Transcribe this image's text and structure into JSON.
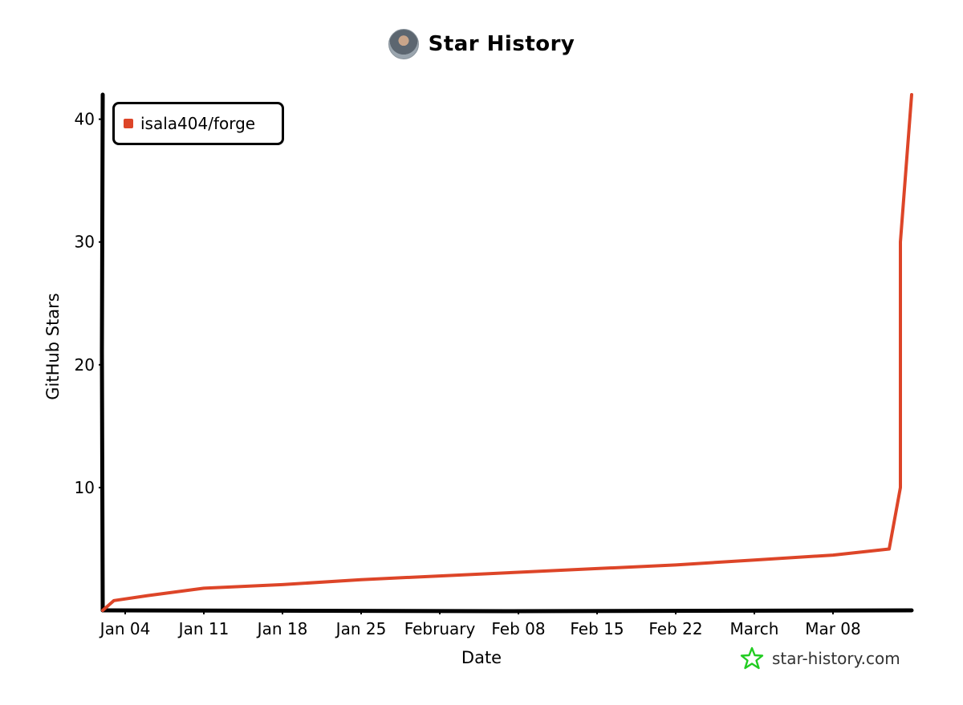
{
  "header": {
    "title": "Star History"
  },
  "chart_data": {
    "type": "line",
    "title": "Star History",
    "xlabel": "Date",
    "ylabel": "GitHub Stars",
    "x_tick_labels": [
      "Jan 04",
      "Jan 11",
      "Jan 18",
      "Jan 25",
      "February",
      "Feb 08",
      "Feb 15",
      "Feb 22",
      "March",
      "Mar 08"
    ],
    "y_ticks": [
      10,
      20,
      30,
      40
    ],
    "ylim": [
      0,
      42
    ],
    "xlim": [
      "2026-01-02",
      "2026-03-15"
    ],
    "legend_position": "top-left",
    "grid": false,
    "series": [
      {
        "name": "isala404/forge",
        "color": "#dd4528",
        "x": [
          "2026-01-02",
          "2026-01-03",
          "2026-01-06",
          "2026-01-11",
          "2026-01-18",
          "2026-01-25",
          "2026-02-01",
          "2026-02-08",
          "2026-02-15",
          "2026-02-22",
          "2026-03-01",
          "2026-03-08",
          "2026-03-13",
          "2026-03-14",
          "2026-03-14",
          "2026-03-15"
        ],
        "y": [
          0,
          0.8,
          1.2,
          1.8,
          2.1,
          2.5,
          2.8,
          3.1,
          3.4,
          3.7,
          4.1,
          4.5,
          5.0,
          10,
          30,
          42
        ]
      }
    ]
  },
  "watermark": {
    "text": "star-history.com",
    "color": "#22cc22"
  }
}
